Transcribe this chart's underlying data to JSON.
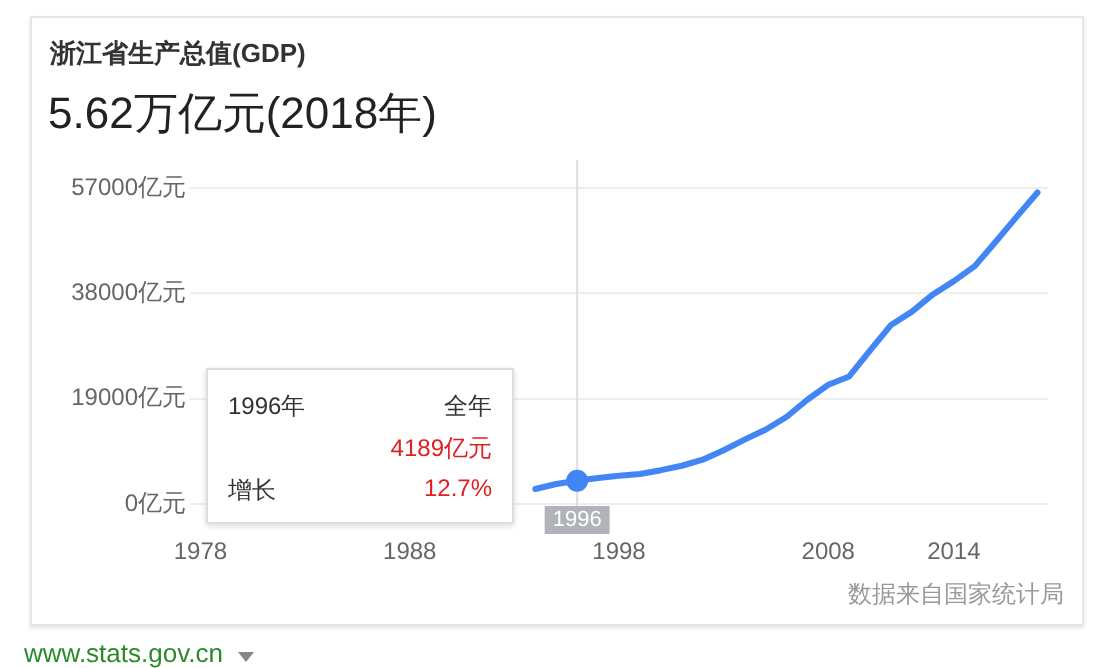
{
  "chart_data": {
    "type": "line",
    "title": "浙江省生产总值(GDP)",
    "subtitle": "5.62万亿元(2018年)",
    "x": [
      1994,
      1995,
      1996,
      1997,
      1998,
      1999,
      2000,
      2001,
      2002,
      2003,
      2004,
      2005,
      2006,
      2007,
      2008,
      2009,
      2010,
      2011,
      2012,
      2013,
      2014,
      2015,
      2016,
      2017,
      2018
    ],
    "series": [
      {
        "color": "#4285f4",
        "values": [
          2700,
          3600,
          4189,
          4700,
          5100,
          5400,
          6100,
          6900,
          8000,
          9700,
          11600,
          13400,
          15700,
          18800,
          21500,
          23000,
          27700,
          32300,
          34700,
          37800,
          40200,
          42900,
          47300,
          51800,
          56200
        ]
      },
      {
        "type": "scatter",
        "color": "#4285f4",
        "marker": "circle",
        "x": [
          1996
        ],
        "values": [
          4189
        ]
      }
    ],
    "xlim": [
      1977.5,
      2018.5
    ],
    "xticks": [
      1978,
      1988,
      1998,
      2008,
      2014
    ],
    "ylim": [
      0,
      57000
    ],
    "yticks": [
      {
        "value": 0,
        "label": "0亿元"
      },
      {
        "value": 19000,
        "label": "19000亿元"
      },
      {
        "value": 38000,
        "label": "38000亿元"
      },
      {
        "value": 57000,
        "label": "57000亿元"
      }
    ],
    "grid": "y",
    "legend": false,
    "marker": "none",
    "line_style": "solid",
    "ref_lines": [
      {
        "axis": "x",
        "value": 1996,
        "label": "1996",
        "color": "#dddddd"
      }
    ],
    "annotations": [
      "1996年",
      "全年",
      "4189亿元",
      "增长",
      "12.7%",
      "数据来自国家统计局",
      "www.stats.gov.cn"
    ]
  }
}
